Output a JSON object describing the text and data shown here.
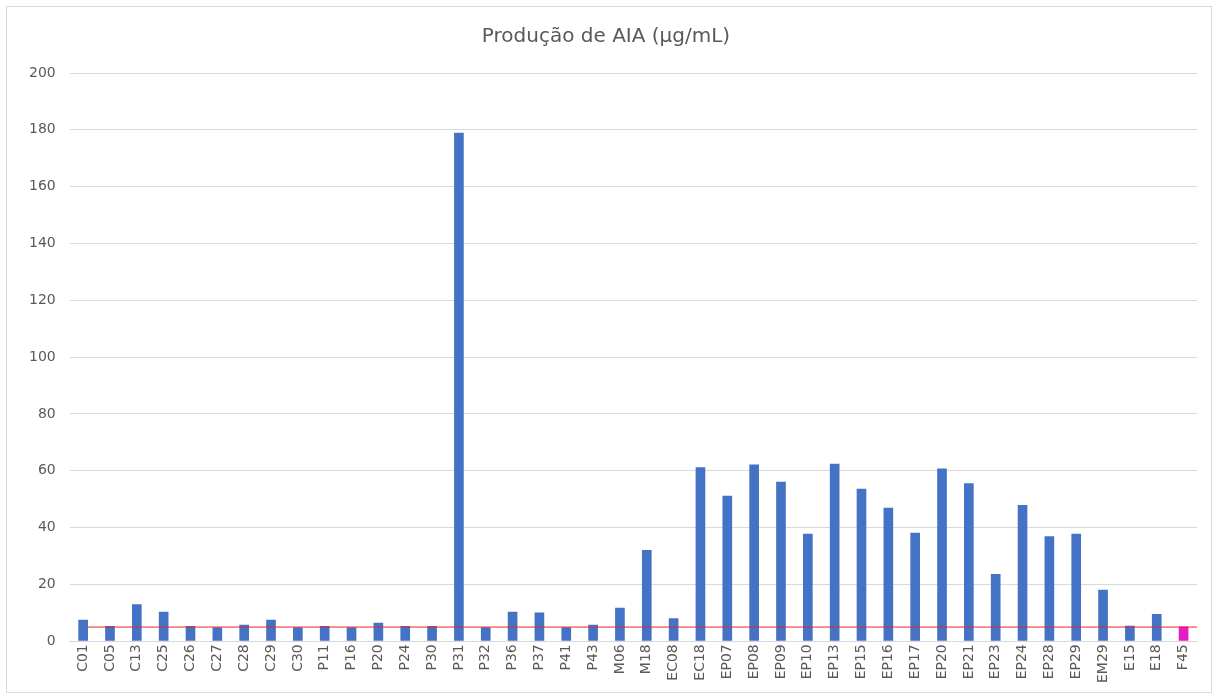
{
  "chart_data": {
    "type": "bar",
    "title": "Produção de AIA (µg/mL)",
    "categories": [
      "C01",
      "C05",
      "C13",
      "C25",
      "C26",
      "C27",
      "C28",
      "C29",
      "C30",
      "P11",
      "P16",
      "P20",
      "P24",
      "P30",
      "P31",
      "P32",
      "P36",
      "P37",
      "P41",
      "P43",
      "M06",
      "M18",
      "EC08",
      "EC18",
      "EP07",
      "EP08",
      "EP09",
      "EP10",
      "EP13",
      "EP15",
      "EP16",
      "EP17",
      "EP20",
      "EP21",
      "EP23",
      "EP24",
      "EP28",
      "EP29",
      "EM29",
      "E15",
      "E18",
      "F45"
    ],
    "values": [
      7.6,
      5.4,
      13,
      10.4,
      5.4,
      4.9,
      5.8,
      7.6,
      4.9,
      5.4,
      4.9,
      6.5,
      5.4,
      5.4,
      179,
      4.9,
      10.4,
      10.1,
      4.9,
      5.8,
      11.8,
      32.1,
      8.1,
      61.2,
      51.2,
      62.2,
      56.1,
      37.8,
      62.5,
      53.7,
      47,
      38.2,
      60.8,
      55.6,
      23.7,
      48,
      37,
      37.8,
      18.1,
      5.5,
      9.6,
      5.2
    ],
    "colors": [
      "#4472c4",
      "#4472c4",
      "#4472c4",
      "#4472c4",
      "#4472c4",
      "#4472c4",
      "#4472c4",
      "#4472c4",
      "#4472c4",
      "#4472c4",
      "#4472c4",
      "#4472c4",
      "#4472c4",
      "#4472c4",
      "#4472c4",
      "#4472c4",
      "#4472c4",
      "#4472c4",
      "#4472c4",
      "#4472c4",
      "#4472c4",
      "#4472c4",
      "#4472c4",
      "#4472c4",
      "#4472c4",
      "#4472c4",
      "#4472c4",
      "#4472c4",
      "#4472c4",
      "#4472c4",
      "#4472c4",
      "#4472c4",
      "#4472c4",
      "#4472c4",
      "#4472c4",
      "#4472c4",
      "#4472c4",
      "#4472c4",
      "#4472c4",
      "#4472c4",
      "#4472c4",
      "#e31ec4"
    ],
    "ylim": [
      0,
      200
    ],
    "yticks": [
      0,
      20,
      40,
      60,
      80,
      100,
      120,
      140,
      160,
      180,
      200
    ],
    "grid": "y",
    "ref_lines": [
      {
        "axis": "y",
        "value": 5,
        "color": "#e8262a"
      }
    ]
  }
}
